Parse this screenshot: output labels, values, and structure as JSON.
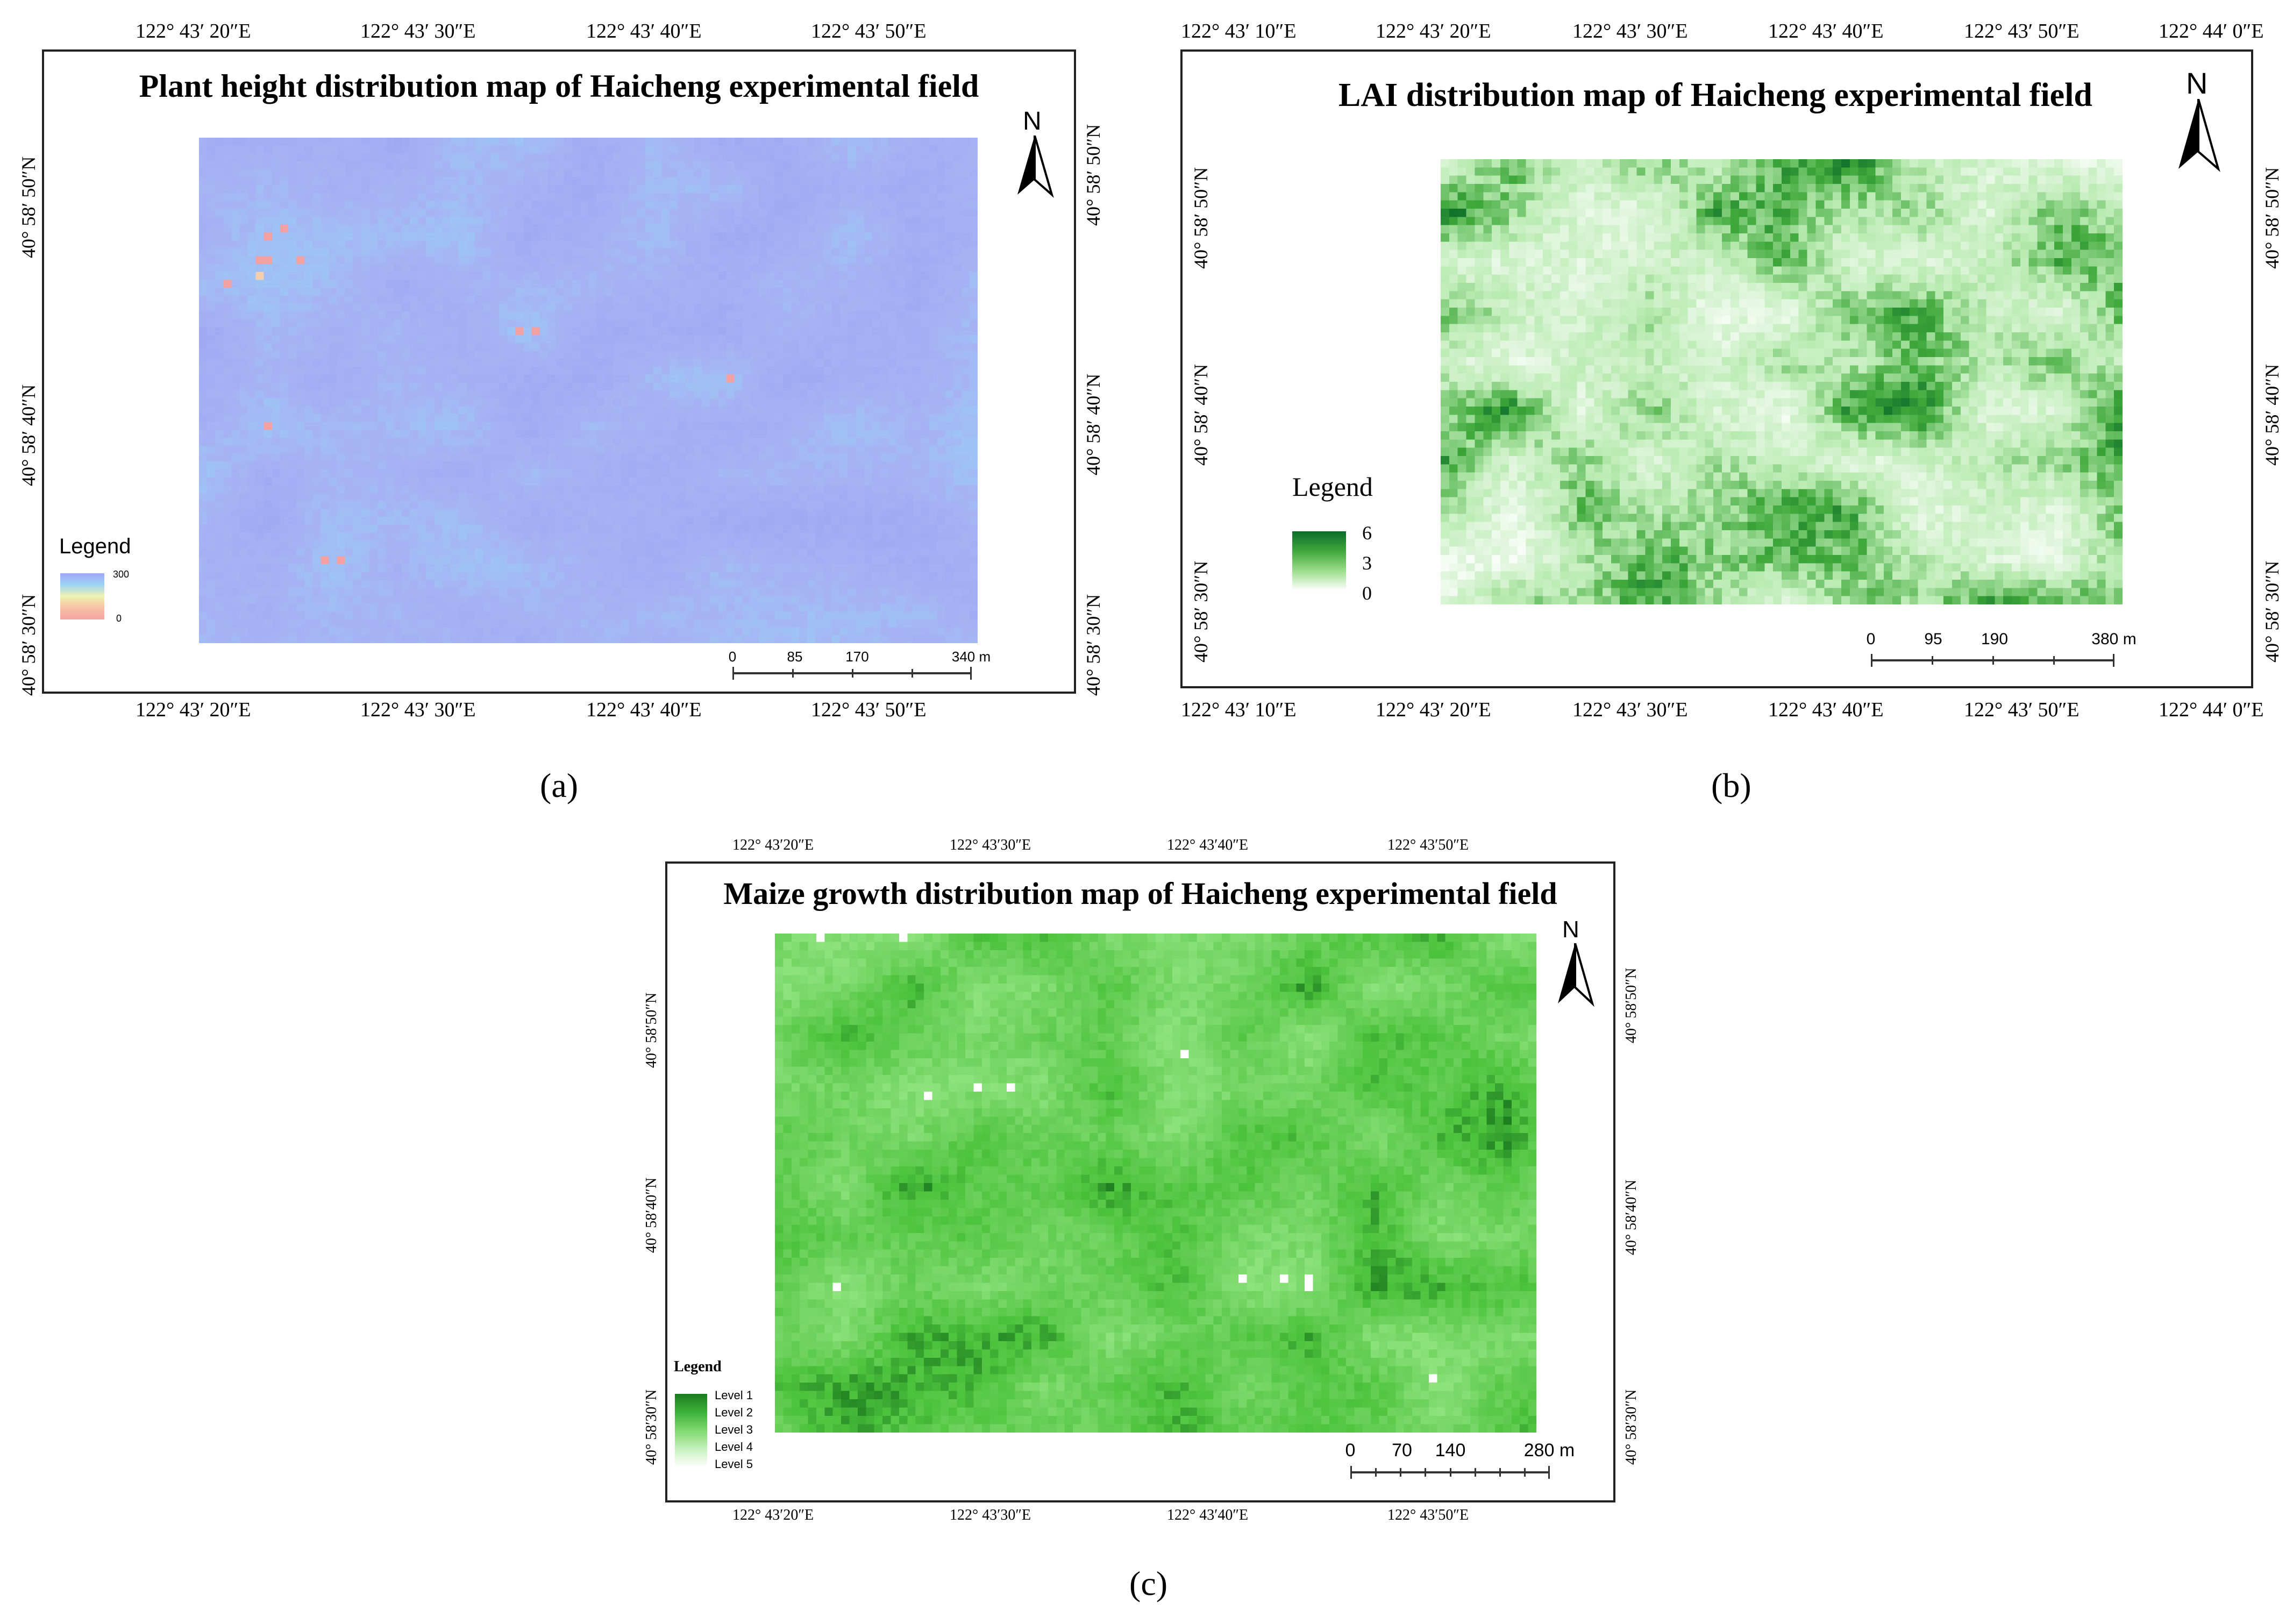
{
  "panels": {
    "a": {
      "title": "Plant height distribution map of Haicheng experimental field",
      "label": "(a)",
      "lon_ticks": [
        "122° 43′ 20″E",
        "122° 43′ 30″E",
        "122° 43′ 40″E",
        "122° 43′ 50″E"
      ],
      "lat_ticks": [
        "40° 58′ 50″N",
        "40° 58′ 40″N",
        "40° 58′ 30″N"
      ],
      "legend": {
        "title": "Legend",
        "max": "300",
        "min": "0"
      },
      "scale": {
        "labels": [
          "0",
          "85",
          "170",
          "340 m"
        ]
      },
      "north": "N",
      "colors": {
        "base": "#9ea8f2",
        "light": "#9ec4f5",
        "mid": "#a6b4f3",
        "hot": "#f2a0a2",
        "warm": "#f4cfae"
      }
    },
    "b": {
      "title": "LAI distribution map of Haicheng experimental field",
      "label": "(b)",
      "lon_ticks": [
        "122° 43′ 10″E",
        "122° 43′ 20″E",
        "122° 43′ 30″E",
        "122° 43′ 40″E",
        "122° 43′ 50″E",
        "122° 44′ 0″E"
      ],
      "lat_ticks": [
        "40° 58′ 50″N",
        "40° 58′ 40″N",
        "40° 58′ 30″N"
      ],
      "legend": {
        "title": "Legend",
        "labels": [
          "6",
          "3",
          "0"
        ]
      },
      "scale": {
        "labels": [
          "0",
          "95",
          "190",
          "380 m"
        ]
      },
      "north": "N",
      "colors": {
        "dark": "#0b6b2a",
        "mid": "#3ea83a",
        "light": "#b8eab0",
        "white": "#ffffff"
      }
    },
    "c": {
      "title": "Maize growth distribution map of Haicheng experimental field",
      "label": "(c)",
      "lon_ticks": [
        "122° 43′20″E",
        "122° 43′30″E",
        "122° 43′40″E",
        "122° 43′50″E"
      ],
      "lat_ticks": [
        "40° 58′50″N",
        "40° 58′40″N",
        "40° 58′30″N"
      ],
      "legend": {
        "title": "Legend",
        "labels": [
          "Level 1",
          "Level 2",
          "Level 3",
          "Level 4",
          "Level 5"
        ]
      },
      "scale": {
        "labels": [
          "0",
          "70",
          "140",
          "280 m"
        ]
      },
      "north": "N",
      "colors": {
        "dark": "#1b7a1f",
        "mid": "#4cc23c",
        "light": "#8fe37e",
        "white": "#ffffff"
      }
    }
  }
}
